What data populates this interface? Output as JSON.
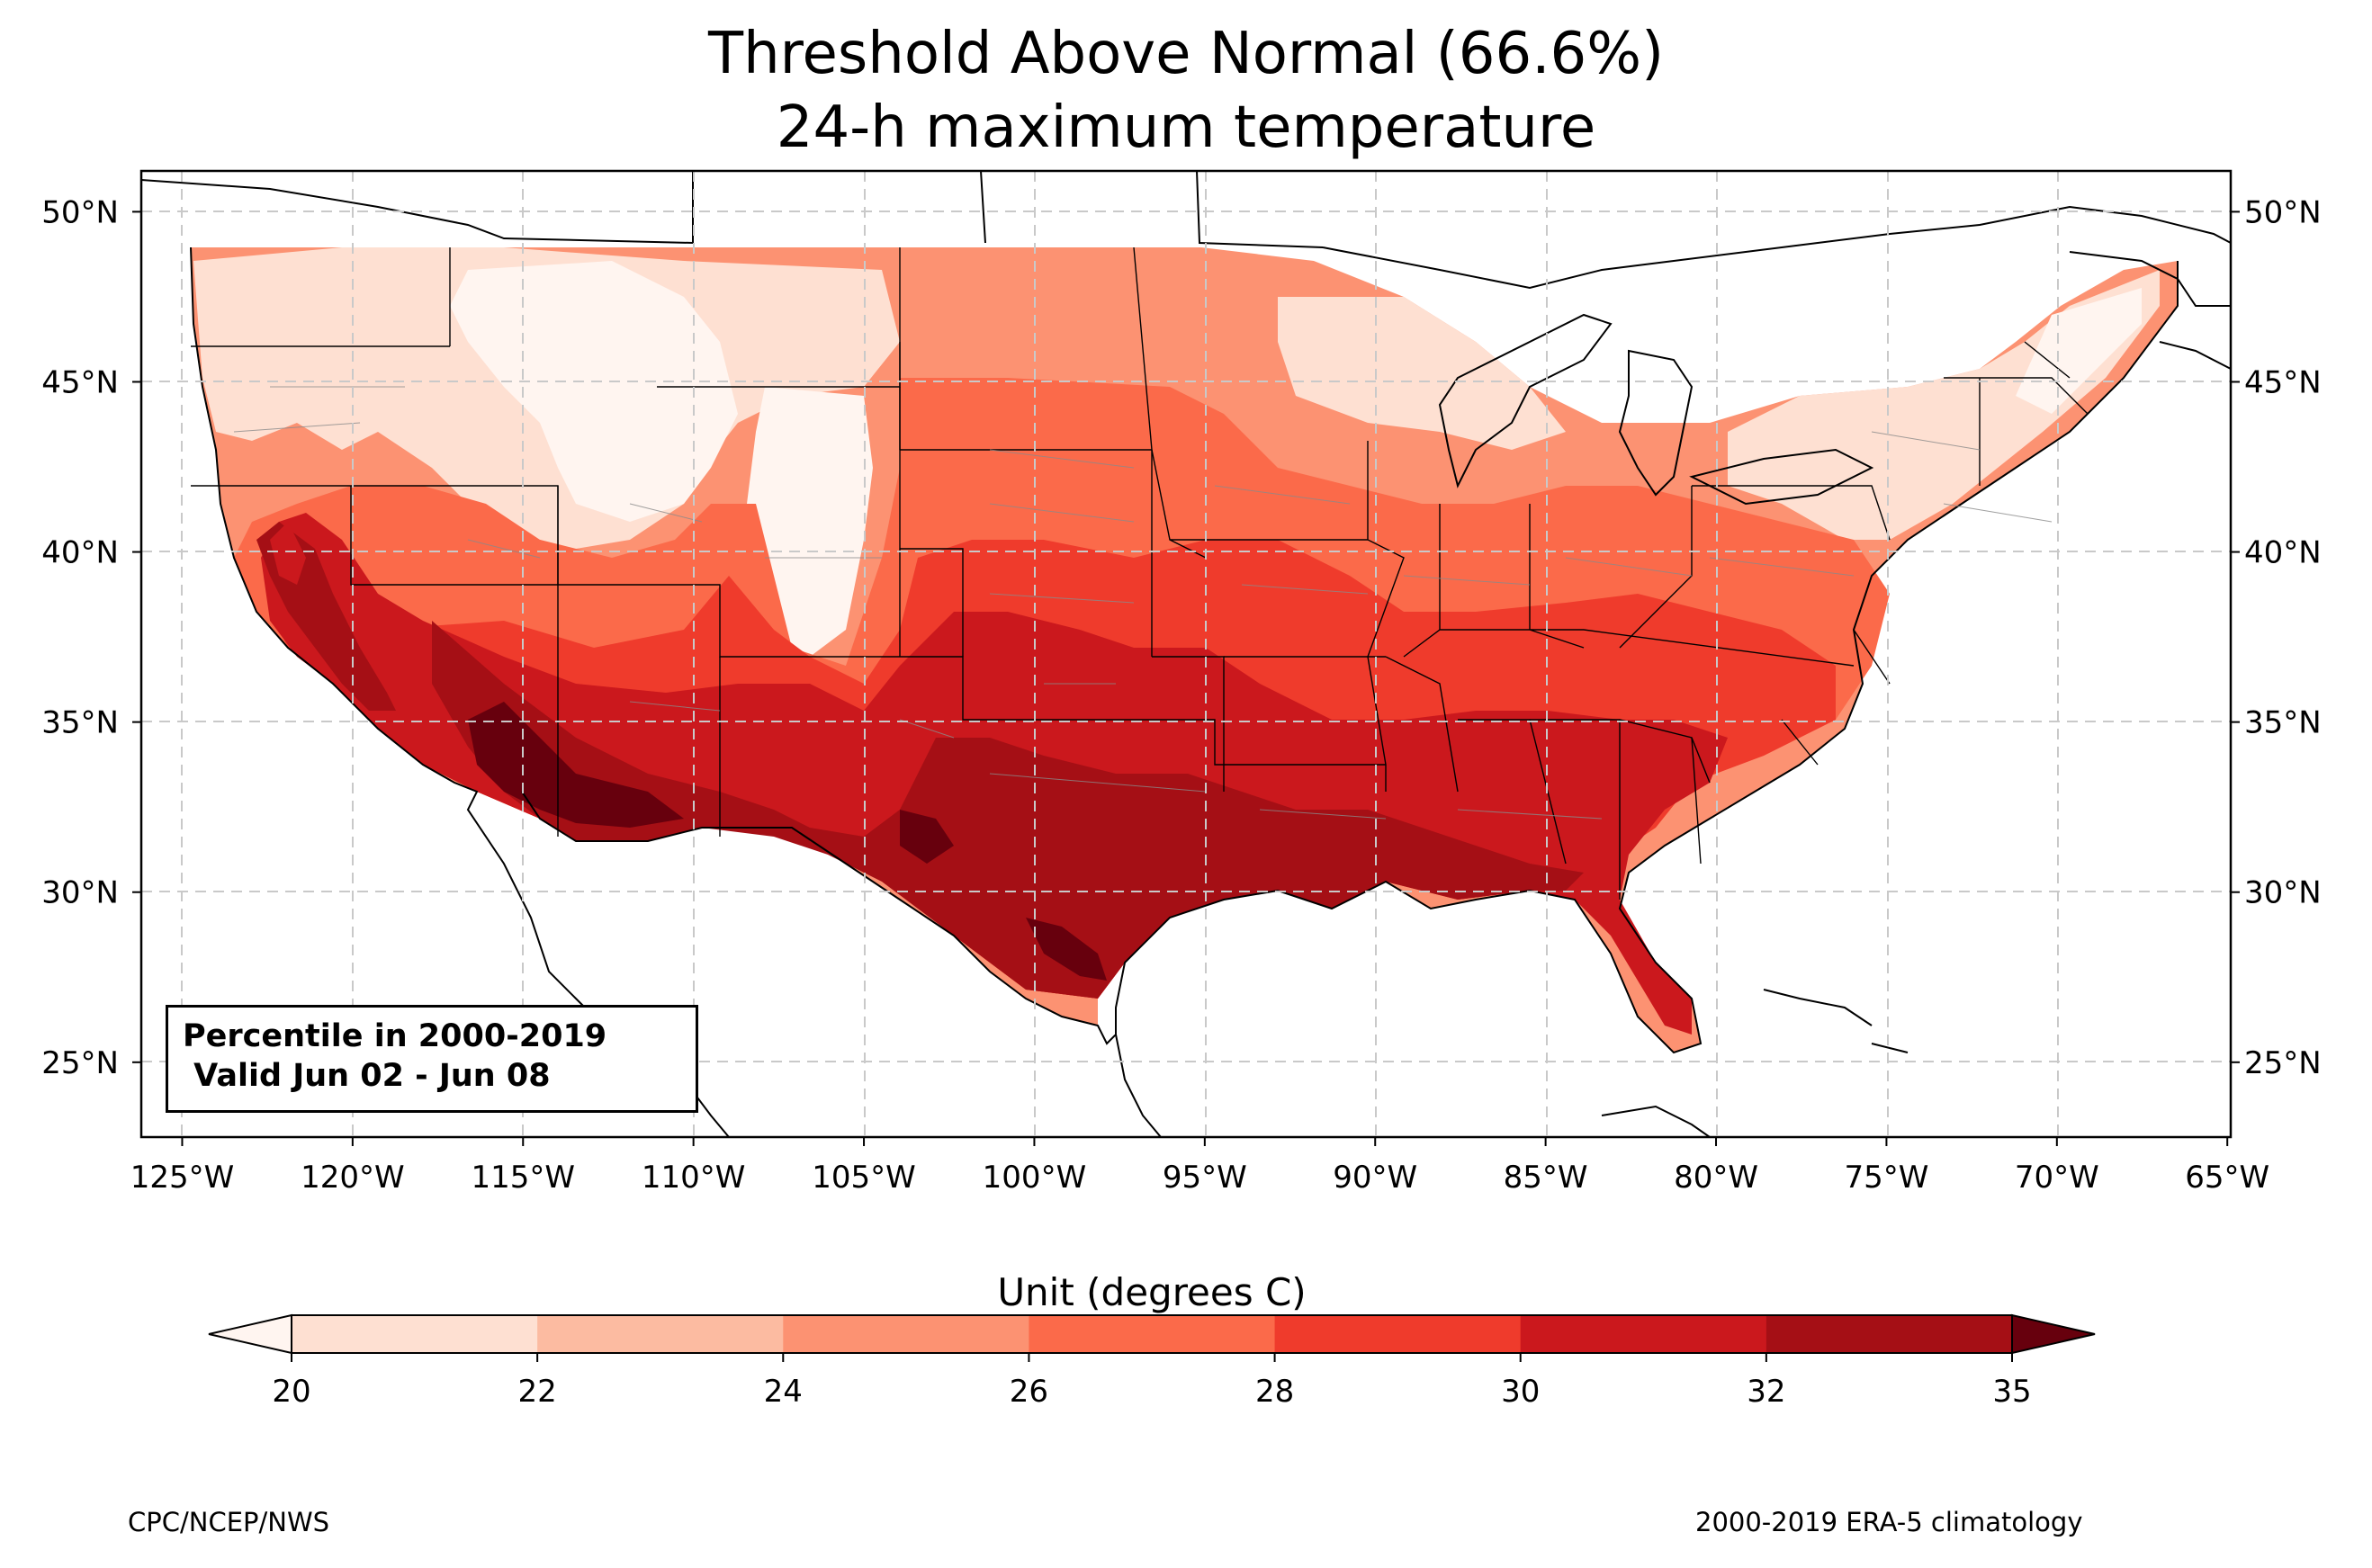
{
  "title": {
    "line1": "Threshold Above Normal (66.6%)",
    "line2": "24-h maximum temperature"
  },
  "map": {
    "lat_ticks": [
      "50°N",
      "45°N",
      "40°N",
      "35°N",
      "30°N",
      "25°N"
    ],
    "lat_values": [
      50,
      45,
      40,
      35,
      30,
      25
    ],
    "lon_ticks": [
      "125°W",
      "120°W",
      "115°W",
      "110°W",
      "105°W",
      "100°W",
      "95°W",
      "90°W",
      "85°W",
      "80°W",
      "75°W",
      "70°W",
      "65°W"
    ],
    "lon_values": [
      -125,
      -120,
      -115,
      -110,
      -105,
      -100,
      -95,
      -90,
      -85,
      -80,
      -75,
      -70,
      -65
    ],
    "extent": {
      "lon_min": -126.2,
      "lon_max": -64.9,
      "lat_min": 22.8,
      "lat_max": 51.2
    },
    "gridlines": true
  },
  "info_box": {
    "line1": "Percentile in 2000-2019",
    "line2": " Valid Jun 02 - Jun 08"
  },
  "colorbar": {
    "label": "Unit (degrees C)",
    "ticks": [
      "20",
      "22",
      "24",
      "26",
      "28",
      "30",
      "32",
      "35"
    ],
    "colors": [
      "#fee0d2",
      "#fcbba1",
      "#fc9272",
      "#fb6a4a",
      "#ef3b2c",
      "#cb181d",
      "#a50f15"
    ],
    "under_color": "#fff5f0",
    "over_color": "#67000d"
  },
  "footer": {
    "left": "CPC/NCEP/NWS",
    "right": "2000-2019 ERA-5 climatology"
  }
}
